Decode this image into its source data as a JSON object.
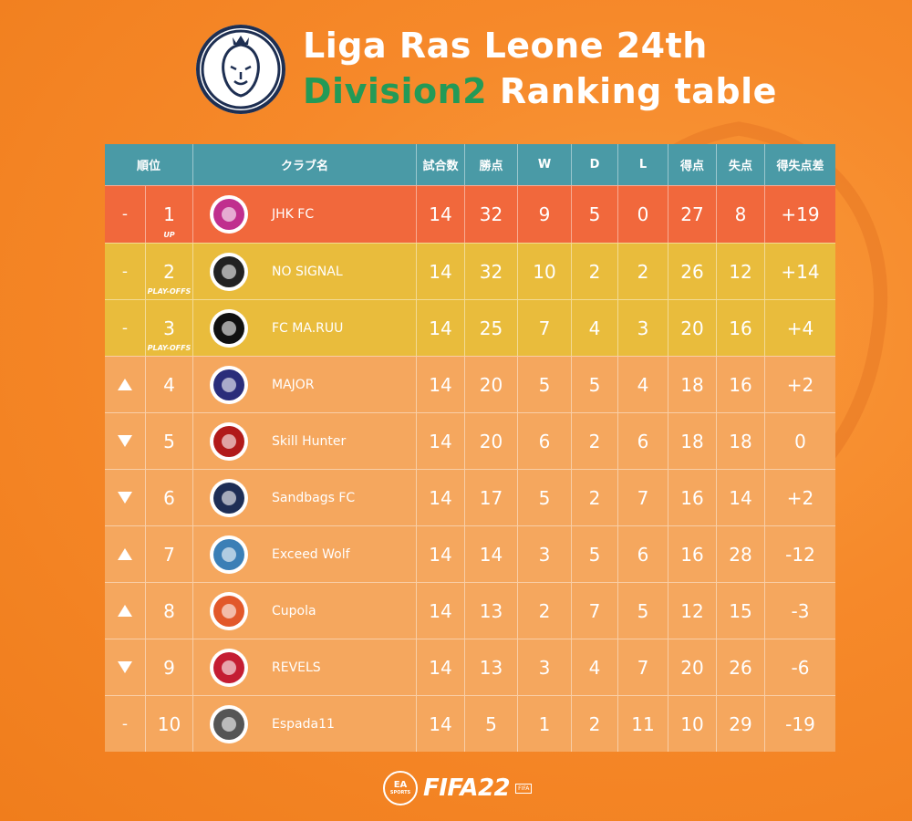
{
  "header": {
    "logo_text": "Liga Ras Leone",
    "title_line1": "Liga Ras Leone 24th",
    "title_line2_highlight": "Division2",
    "title_line2_rest": "Ranking table"
  },
  "table": {
    "columns": [
      "順位",
      "クラブ名",
      "試合数",
      "勝点",
      "W",
      "D",
      "L",
      "得点",
      "失点",
      "得失点差"
    ],
    "rows": [
      {
        "move": "-",
        "rank": "1",
        "badge": "UP",
        "club": "JHK FC",
        "crest_color": "#c02f8e",
        "mp": "14",
        "pts": "32",
        "w": "9",
        "d": "5",
        "l": "0",
        "gf": "27",
        "ga": "8",
        "gd": "+19"
      },
      {
        "move": "-",
        "rank": "2",
        "badge": "PLAY-OFFS",
        "club": "NO SIGNAL",
        "crest_color": "#222222",
        "mp": "14",
        "pts": "32",
        "w": "10",
        "d": "2",
        "l": "2",
        "gf": "26",
        "ga": "12",
        "gd": "+14"
      },
      {
        "move": "-",
        "rank": "3",
        "badge": "PLAY-OFFS",
        "club": "FC MA.RUU",
        "crest_color": "#111111",
        "mp": "14",
        "pts": "25",
        "w": "7",
        "d": "4",
        "l": "3",
        "gf": "20",
        "ga": "16",
        "gd": "+4"
      },
      {
        "move": "up",
        "rank": "4",
        "badge": "",
        "club": "MAJOR",
        "crest_color": "#2a2d7a",
        "mp": "14",
        "pts": "20",
        "w": "5",
        "d": "5",
        "l": "4",
        "gf": "18",
        "ga": "16",
        "gd": "+2"
      },
      {
        "move": "down",
        "rank": "5",
        "badge": "",
        "club": "Skill Hunter",
        "crest_color": "#b11a1a",
        "mp": "14",
        "pts": "20",
        "w": "6",
        "d": "2",
        "l": "6",
        "gf": "18",
        "ga": "18",
        "gd": "0"
      },
      {
        "move": "down",
        "rank": "6",
        "badge": "",
        "club": "Sandbags FC",
        "crest_color": "#1e2e55",
        "mp": "14",
        "pts": "17",
        "w": "5",
        "d": "2",
        "l": "7",
        "gf": "16",
        "ga": "14",
        "gd": "+2"
      },
      {
        "move": "up",
        "rank": "7",
        "badge": "",
        "club": "Exceed Wolf",
        "crest_color": "#3b7fb6",
        "mp": "14",
        "pts": "14",
        "w": "3",
        "d": "5",
        "l": "6",
        "gf": "16",
        "ga": "28",
        "gd": "-12"
      },
      {
        "move": "up",
        "rank": "8",
        "badge": "",
        "club": "Cupola",
        "crest_color": "#e2582a",
        "mp": "14",
        "pts": "13",
        "w": "2",
        "d": "7",
        "l": "5",
        "gf": "12",
        "ga": "15",
        "gd": "-3"
      },
      {
        "move": "down",
        "rank": "9",
        "badge": "",
        "club": "REVELS",
        "crest_color": "#c41d33",
        "mp": "14",
        "pts": "13",
        "w": "3",
        "d": "4",
        "l": "7",
        "gf": "20",
        "ga": "26",
        "gd": "-6"
      },
      {
        "move": "-",
        "rank": "10",
        "badge": "",
        "club": "Espada11",
        "crest_color": "#555555",
        "mp": "14",
        "pts": "5",
        "w": "1",
        "d": "2",
        "l": "11",
        "gf": "10",
        "ga": "29",
        "gd": "-19"
      }
    ]
  },
  "footer": {
    "ea_label": "EA",
    "ea_sub": "SPORTS",
    "game": "FIFA22",
    "fifa_small": "FIFA"
  },
  "colors": {
    "header_bg": "#4a9aa6",
    "promotion_row": "#f1683c",
    "playoff_row": "#e9bc3c",
    "default_row": "#f5a75e",
    "highlight_text": "#239a57"
  }
}
